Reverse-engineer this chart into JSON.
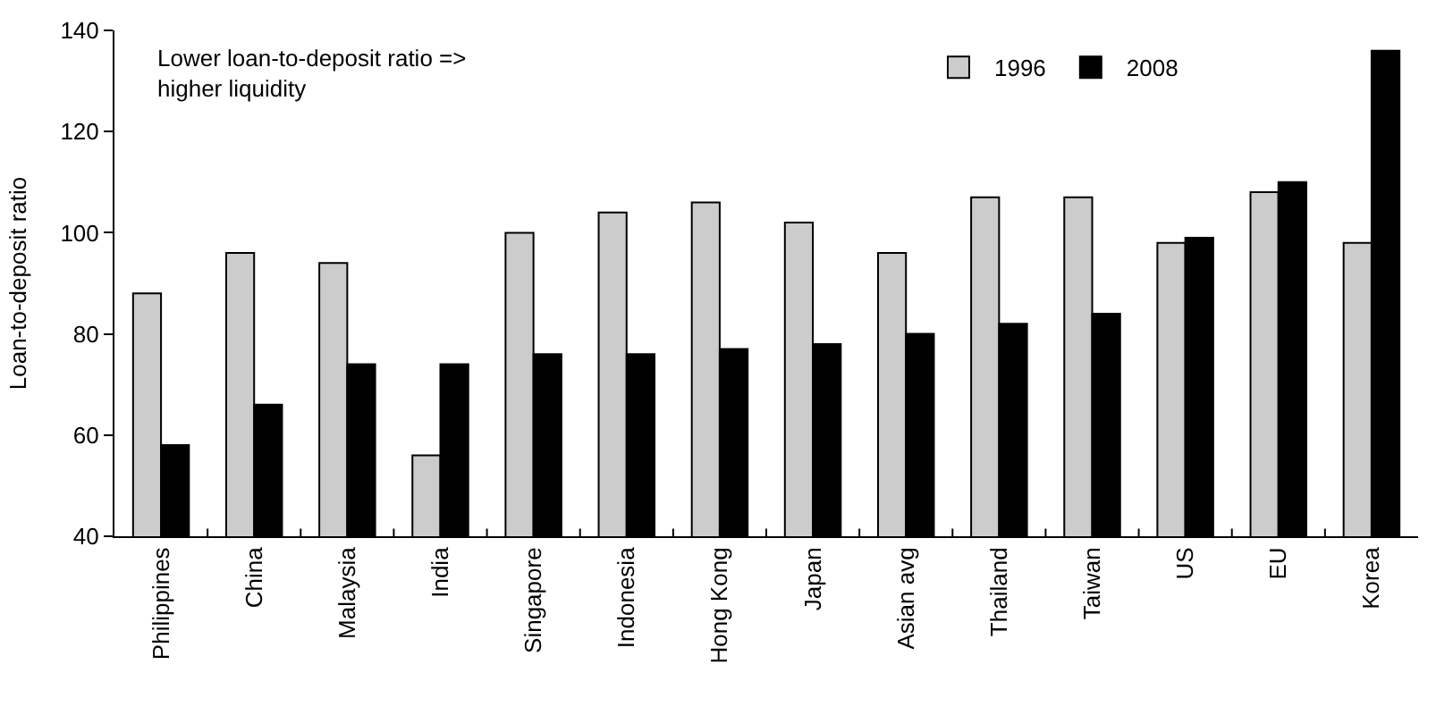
{
  "chart_data": {
    "type": "bar",
    "ylabel": "Loan-to-deposit ratio",
    "annotations": [
      "Lower loan-to-deposit ratio =>\nhigher liquidity"
    ],
    "categories": [
      "Philippines",
      "China",
      "Malaysia",
      "India",
      "Singapore",
      "Indonesia",
      "Hong Kong",
      "Japan",
      "Asian avg",
      "Thailand",
      "Taiwan",
      "US",
      "EU",
      "Korea"
    ],
    "series": [
      {
        "name": "1996",
        "color": "#cccccc",
        "values": [
          88,
          96,
          94,
          56,
          100,
          104,
          106,
          102,
          96,
          107,
          107,
          98,
          108,
          98
        ]
      },
      {
        "name": "2008",
        "color": "#000000",
        "values": [
          58,
          66,
          74,
          74,
          76,
          76,
          77,
          78,
          80,
          82,
          84,
          99,
          110,
          136
        ]
      }
    ],
    "ylim": [
      40,
      140
    ],
    "yticks": [
      40,
      60,
      80,
      100,
      120,
      140
    ],
    "legend": "top right"
  }
}
